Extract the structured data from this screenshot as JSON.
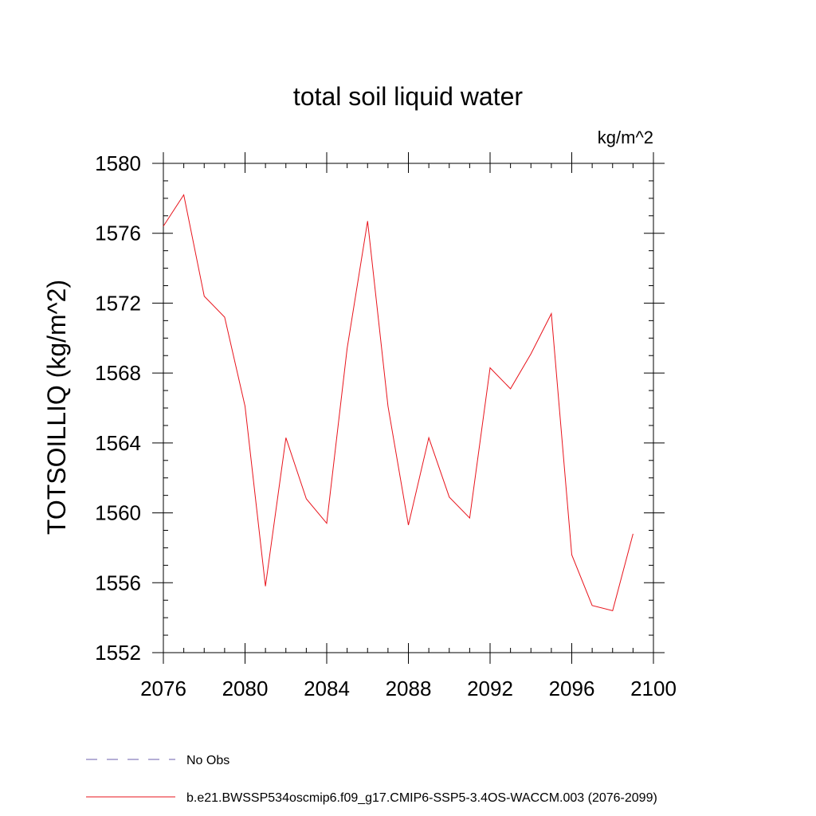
{
  "chart_data": {
    "type": "line",
    "title": "total soil liquid water",
    "units_label": "kg/m^2",
    "ylabel": "TOTSOILLIQ  (kg/m^2)",
    "xlabel": "",
    "xlim": [
      2076,
      2100
    ],
    "ylim": [
      1552,
      1580
    ],
    "xticks": [
      2076,
      2080,
      2084,
      2088,
      2092,
      2096,
      2100
    ],
    "yticks": [
      1552,
      1556,
      1560,
      1564,
      1568,
      1572,
      1576,
      1580
    ],
    "x_minor_step": 1,
    "y_minor_step": 1,
    "grid": false,
    "legend_position": "bottom-left",
    "series": [
      {
        "name": "b.e21.BWSSP534oscmip6.f09_g17.CMIP6-SSP5-3.4OS-WACCM.003 (2076-2099)",
        "color": "#e8141c",
        "style": "solid",
        "x": [
          2076,
          2077,
          2078,
          2079,
          2080,
          2081,
          2082,
          2083,
          2084,
          2085,
          2086,
          2087,
          2088,
          2089,
          2090,
          2091,
          2092,
          2093,
          2094,
          2095,
          2096,
          2097,
          2098,
          2099
        ],
        "y": [
          1576.4,
          1578.2,
          1572.4,
          1571.2,
          1566.1,
          1555.8,
          1564.3,
          1560.8,
          1559.4,
          1569.4,
          1576.7,
          1566.1,
          1559.3,
          1564.3,
          1560.9,
          1559.7,
          1568.3,
          1567.1,
          1569.1,
          1571.4,
          1557.6,
          1554.7,
          1554.4,
          1558.8
        ]
      }
    ],
    "legend": [
      {
        "label": "No Obs",
        "color": "#6b5fae",
        "style": "dashed"
      },
      {
        "label": "b.e21.BWSSP534oscmip6.f09_g17.CMIP6-SSP5-3.4OS-WACCM.003 (2076-2099)",
        "color": "#e8141c",
        "style": "solid"
      }
    ]
  }
}
